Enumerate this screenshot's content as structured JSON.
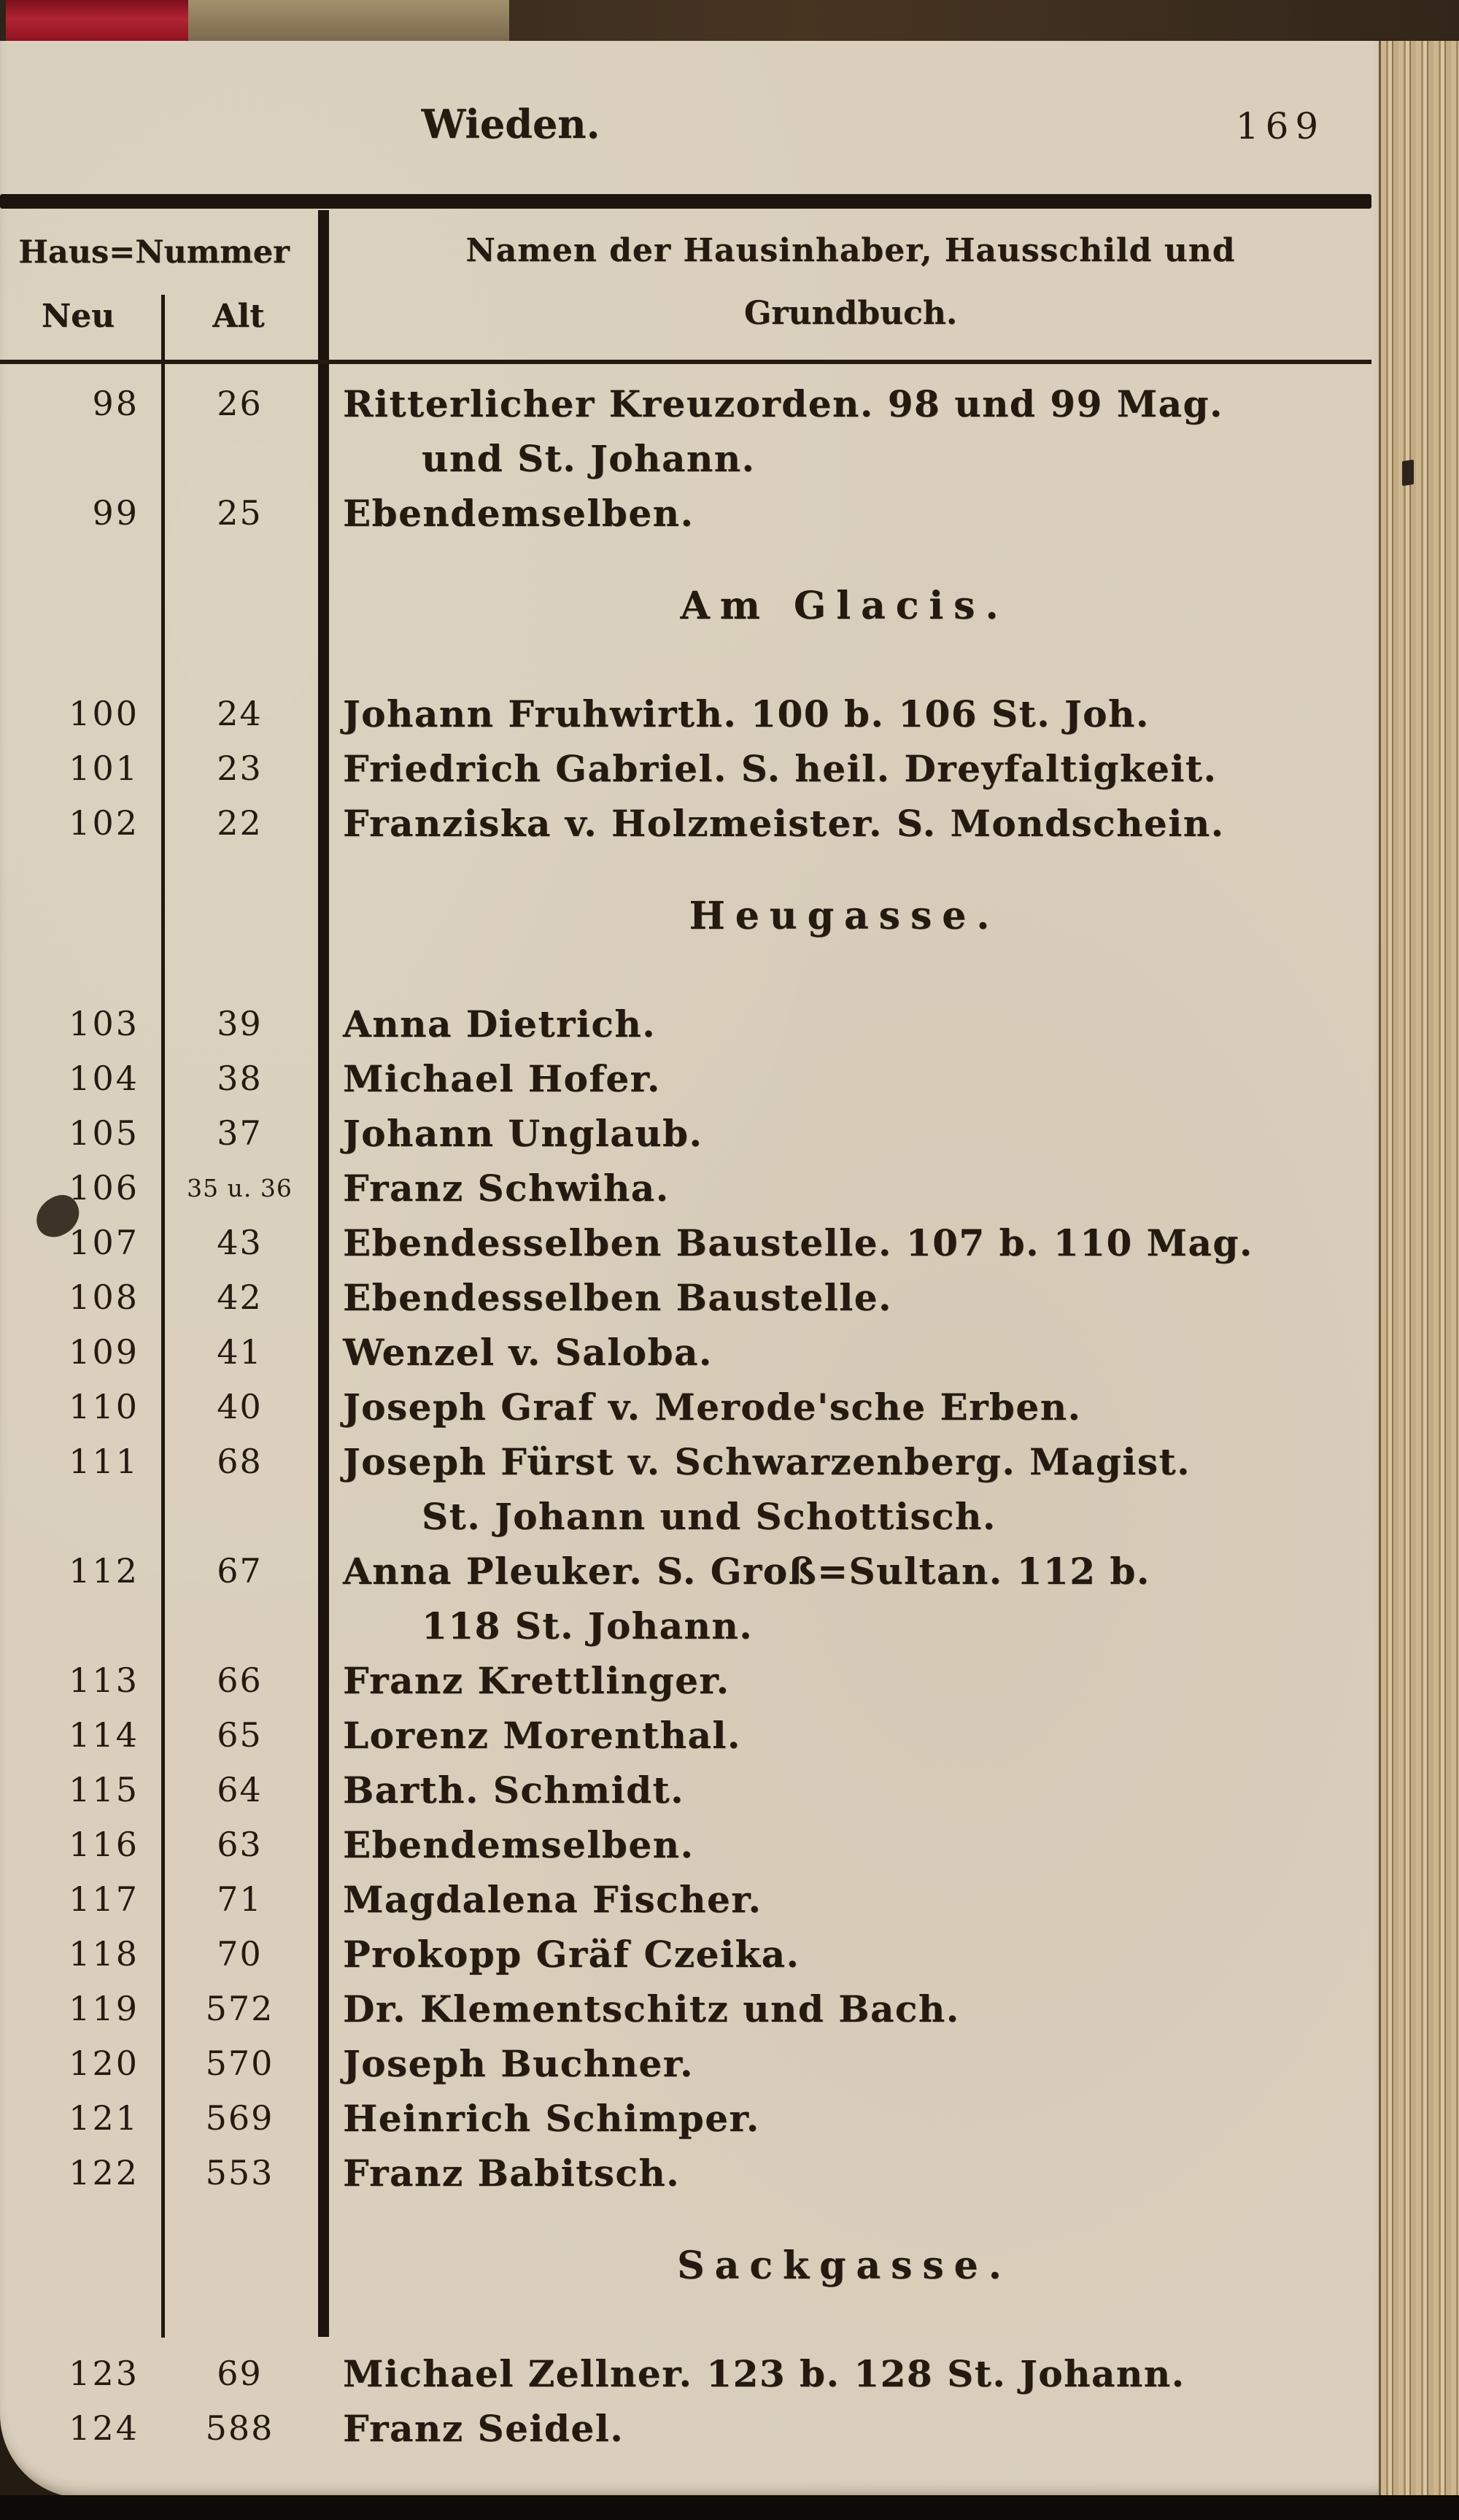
{
  "page": {
    "header_title": "Wieden.",
    "page_number": "169"
  },
  "table": {
    "col_group_header": "Haus=Nummer",
    "sub_header_new": "Neu",
    "sub_header_old": "Alt",
    "names_header_line1": "Namen der Hausinhaber, Hausschild und",
    "names_header_line2": "Grundbuch."
  },
  "rows": [
    {
      "type": "entry",
      "neu": "98",
      "alt": "26",
      "lines": [
        "Ritterlicher Kreuzorden. 98 und 99 Mag.",
        "und St. Johann."
      ]
    },
    {
      "type": "entry",
      "neu": "99",
      "alt": "25",
      "lines": [
        "Ebendemselben."
      ]
    },
    {
      "type": "section",
      "title": "Am Glacis."
    },
    {
      "type": "entry",
      "neu": "100",
      "alt": "24",
      "lines": [
        "Johann Fruhwirth. 100 b. 106 St. Joh."
      ]
    },
    {
      "type": "entry",
      "neu": "101",
      "alt": "23",
      "lines": [
        "Friedrich Gabriel. S. heil. Dreyfaltigkeit."
      ]
    },
    {
      "type": "entry",
      "neu": "102",
      "alt": "22",
      "lines": [
        "Franziska v. Holzmeister. S. Mondschein."
      ]
    },
    {
      "type": "section",
      "title": "Heugasse."
    },
    {
      "type": "entry",
      "neu": "103",
      "alt": "39",
      "lines": [
        "Anna Dietrich."
      ]
    },
    {
      "type": "entry",
      "neu": "104",
      "alt": "38",
      "lines": [
        "Michael Hofer."
      ]
    },
    {
      "type": "entry",
      "neu": "105",
      "alt": "37",
      "lines": [
        "Johann Unglaub."
      ]
    },
    {
      "type": "entry",
      "neu": "106",
      "alt": "35 u. 36",
      "lines": [
        "Franz Schwiha."
      ]
    },
    {
      "type": "entry",
      "neu": "107",
      "alt": "43",
      "lines": [
        "Ebendesselben Baustelle. 107 b. 110 Mag."
      ]
    },
    {
      "type": "entry",
      "neu": "108",
      "alt": "42",
      "lines": [
        "Ebendesselben Baustelle."
      ]
    },
    {
      "type": "entry",
      "neu": "109",
      "alt": "41",
      "lines": [
        "Wenzel v. Saloba."
      ]
    },
    {
      "type": "entry",
      "neu": "110",
      "alt": "40",
      "lines": [
        "Joseph Graf v. Merode'sche Erben."
      ]
    },
    {
      "type": "entry",
      "neu": "111",
      "alt": "68",
      "lines": [
        "Joseph Fürst v. Schwarzenberg. Magist.",
        "St. Johann und Schottisch."
      ]
    },
    {
      "type": "entry",
      "neu": "112",
      "alt": "67",
      "lines": [
        "Anna Pleuker. S. Groß=Sultan. 112 b.",
        "118 St. Johann."
      ]
    },
    {
      "type": "entry",
      "neu": "113",
      "alt": "66",
      "lines": [
        "Franz Krettlinger."
      ]
    },
    {
      "type": "entry",
      "neu": "114",
      "alt": "65",
      "lines": [
        "Lorenz Morenthal."
      ]
    },
    {
      "type": "entry",
      "neu": "115",
      "alt": "64",
      "lines": [
        "Barth. Schmidt."
      ]
    },
    {
      "type": "entry",
      "neu": "116",
      "alt": "63",
      "lines": [
        "Ebendemselben."
      ]
    },
    {
      "type": "entry",
      "neu": "117",
      "alt": "71",
      "lines": [
        "Magdalena Fischer."
      ]
    },
    {
      "type": "entry",
      "neu": "118",
      "alt": "70",
      "lines": [
        "Prokopp Gräf Czeika."
      ]
    },
    {
      "type": "entry",
      "neu": "119",
      "alt": "572",
      "lines": [
        "Dr. Klementschitz und Bach."
      ]
    },
    {
      "type": "entry",
      "neu": "120",
      "alt": "570",
      "lines": [
        "Joseph Buchner."
      ]
    },
    {
      "type": "entry",
      "neu": "121",
      "alt": "569",
      "lines": [
        "Heinrich Schimper."
      ]
    },
    {
      "type": "entry",
      "neu": "122",
      "alt": "553",
      "lines": [
        "Franz Babitsch."
      ]
    },
    {
      "type": "section",
      "title": "Sackgasse."
    },
    {
      "type": "entry",
      "neu": "123",
      "alt": "69",
      "lines": [
        "Michael Zellner. 123 b. 128 St. Johann."
      ]
    },
    {
      "type": "entry",
      "neu": "124",
      "alt": "588",
      "lines": [
        "Franz Seidel."
      ]
    }
  ],
  "colors": {
    "paper": "#d9cfbc",
    "ink": "#241a10",
    "bookmark_red": "#a81c2a",
    "fore_edge": "#c9b28c"
  }
}
